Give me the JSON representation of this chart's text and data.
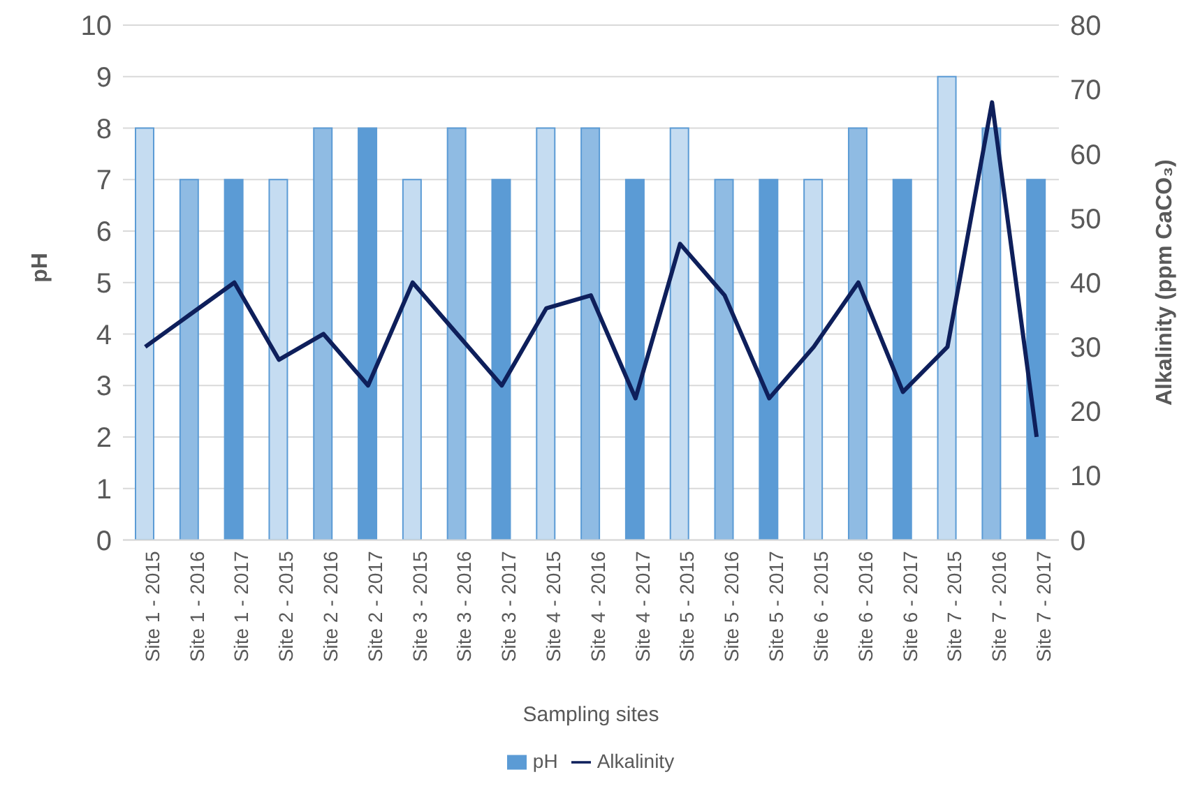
{
  "chart_data": {
    "type": "bar",
    "xlabel": "Sampling sites",
    "ylabel": "pH",
    "y2label": "Alkalinity (ppm CaCO₃)",
    "categories": [
      "Site 1 - 2015",
      "Site 1 - 2016",
      "Site 1 - 2017",
      "Site 2 - 2015",
      "Site 2 - 2016",
      "Site 2 - 2017",
      "Site 3 - 2015",
      "Site 3 - 2016",
      "Site 3 - 2017",
      "Site 4 - 2015",
      "Site 4 - 2016",
      "Site 4 - 2017",
      "Site 5 - 2015",
      "Site 5 - 2016",
      "Site 5 - 2017",
      "Site 6 - 2015",
      "Site 6 - 2016",
      "Site 6 - 2017",
      "Site 7 - 2015",
      "Site 7 - 2016",
      "Site 7 - 2017"
    ],
    "series": [
      {
        "name": "pH",
        "color": "#5b9bd5",
        "colors": [
          "#c5dcf1",
          "#8fbbe3",
          "#5b9bd5",
          "#c5dcf1",
          "#8fbbe3",
          "#5b9bd5",
          "#c5dcf1",
          "#8fbbe3",
          "#5b9bd5",
          "#c5dcf1",
          "#8fbbe3",
          "#5b9bd5",
          "#c5dcf1",
          "#8fbbe3",
          "#5b9bd5",
          "#c5dcf1",
          "#8fbbe3",
          "#5b9bd5",
          "#c5dcf1",
          "#8fbbe3",
          "#5b9bd5"
        ],
        "values": [
          8,
          7,
          7,
          7,
          8,
          8,
          7,
          8,
          7,
          8,
          8,
          7,
          8,
          7,
          7,
          7,
          8,
          7,
          9,
          8,
          7
        ]
      },
      {
        "name": "Alkalinity",
        "type": "line",
        "axis": "y2",
        "color": "#0e1f5b",
        "values": [
          30,
          35,
          40,
          28,
          32,
          24,
          40,
          32,
          24,
          36,
          38,
          22,
          46,
          38,
          22,
          30,
          40,
          23,
          30,
          68,
          16
        ]
      }
    ],
    "ylim": [
      0,
      10
    ],
    "yticks": [
      0,
      1,
      2,
      3,
      4,
      5,
      6,
      7,
      8,
      9,
      10
    ],
    "y2lim": [
      0,
      80
    ],
    "y2ticks": [
      0,
      10,
      20,
      30,
      40,
      50,
      60,
      70,
      80
    ],
    "grid": "y",
    "legend": "bottom",
    "marker": "none"
  }
}
